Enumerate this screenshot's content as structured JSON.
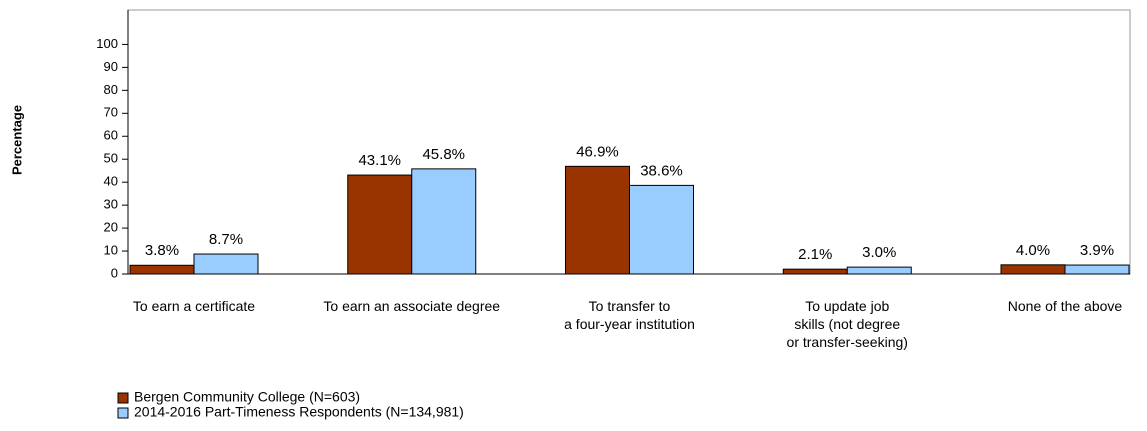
{
  "chart_data": {
    "type": "bar",
    "y_label": "Percentage",
    "categories": [
      "To earn a certificate",
      "To earn an associate degree",
      "To transfer to\na four-year institution",
      "To update job\nskills (not degree\nor transfer-seeking)",
      "None of the above"
    ],
    "series": [
      {
        "name": "Bergen Community College (N=603)",
        "color": "#993300",
        "values": [
          3.8,
          43.1,
          46.9,
          2.1,
          4.0
        ],
        "value_labels": [
          "3.8%",
          "43.1%",
          "46.9%",
          "2.1%",
          "4.0%"
        ]
      },
      {
        "name": "2014-2016 Part-Timeness Respondents (N=134,981)",
        "color": "#99ccff",
        "values": [
          8.7,
          45.8,
          38.6,
          3.0,
          3.9
        ],
        "value_labels": [
          "8.7%",
          "45.8%",
          "38.6%",
          "3.0%",
          "3.9%"
        ]
      }
    ],
    "ylim": [
      0,
      115
    ],
    "yticks": [
      0,
      10,
      20,
      30,
      40,
      50,
      60,
      70,
      80,
      90,
      100
    ]
  }
}
